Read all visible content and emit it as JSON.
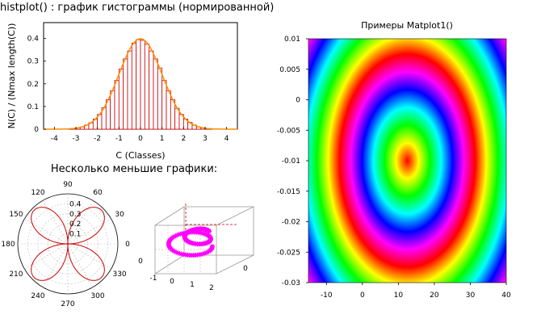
{
  "chart_data": [
    {
      "type": "bar",
      "title": "histplot() : график гистограммы (нормированной)",
      "xlabel": "C (Classes)",
      "ylabel": "N(C) / (Nmax length(C))",
      "xlim": [
        -4.5,
        4.5
      ],
      "ylim": [
        0,
        0.47
      ],
      "xticks": [
        "-4",
        "-3",
        "-2",
        "-1",
        "0",
        "1",
        "2",
        "3",
        "4"
      ],
      "yticks": [
        "0",
        "0.1",
        "0.2",
        "0.3",
        "0.4"
      ],
      "bin_width": 0.2,
      "bin_centers": [
        -3.1,
        -2.9,
        -2.7,
        -2.5,
        -2.3,
        -2.1,
        -1.9,
        -1.7,
        -1.5,
        -1.3,
        -1.1,
        -0.9,
        -0.7,
        -0.5,
        -0.3,
        -0.1,
        0.1,
        0.3,
        0.5,
        0.7,
        0.9,
        1.1,
        1.3,
        1.5,
        1.7,
        1.9,
        2.1,
        2.3,
        2.5,
        2.7,
        2.9,
        3.1
      ],
      "values": [
        0.003,
        0.006,
        0.01,
        0.018,
        0.028,
        0.045,
        0.065,
        0.095,
        0.13,
        0.17,
        0.215,
        0.265,
        0.31,
        0.345,
        0.38,
        0.395,
        0.392,
        0.375,
        0.345,
        0.31,
        0.27,
        0.215,
        0.17,
        0.13,
        0.092,
        0.065,
        0.045,
        0.03,
        0.018,
        0.01,
        0.006,
        0.003
      ],
      "series": [
        {
          "color": "#cc0000"
        },
        {
          "color": "#ff8c00"
        }
      ]
    },
    {
      "type": "line",
      "subtitle": "Несколько меньшие графики:",
      "polar": true,
      "angle_ticks": [
        "0",
        "30",
        "60",
        "90",
        "120",
        "150",
        "180",
        "210",
        "240",
        "270",
        "300",
        "330"
      ],
      "radial_ticks": [
        "0.1",
        "0.2",
        "0.3",
        "0.4"
      ],
      "rmax": 0.5,
      "curve": "r = 0.5·|sin(2θ)|",
      "color": "#cc0000"
    },
    {
      "type": "scatter",
      "three_d": true,
      "xticks": [
        "-1",
        "0",
        "1",
        "2"
      ],
      "yticks": [
        "0",
        "0"
      ],
      "color": "#ff00ff",
      "marker": "star"
    },
    {
      "type": "heatmap",
      "title": "Примеры Matplot1()",
      "xlim": [
        -15,
        40
      ],
      "ylim": [
        -0.03,
        0.01
      ],
      "xticks": [
        "-10",
        "0",
        "10",
        "20",
        "30",
        "40"
      ],
      "yticks": [
        "0.01",
        "0.005",
        "0",
        "-0.005",
        "-0.01",
        "-0.015",
        "-0.02",
        "-0.025",
        "-0.03"
      ],
      "center": [
        12.5,
        -0.01
      ],
      "colormap": "hsv"
    }
  ]
}
